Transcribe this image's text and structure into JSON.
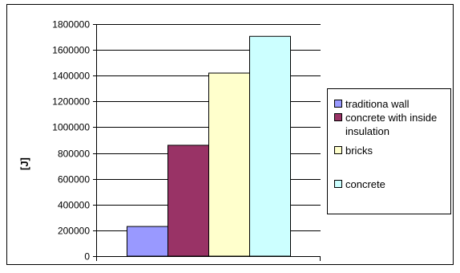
{
  "chart_data": {
    "type": "bar",
    "categories": [
      ""
    ],
    "series": [
      {
        "name": "traditiona wall",
        "values": [
          230000
        ],
        "color": "#9999ff"
      },
      {
        "name": "concrete with inside insulation",
        "values": [
          860000
        ],
        "color": "#993366"
      },
      {
        "name": "bricks",
        "values": [
          1420000
        ],
        "color": "#ffffcc"
      },
      {
        "name": "concrete",
        "values": [
          1705000
        ],
        "color": "#ccffff"
      }
    ],
    "yticks": [
      "0",
      "200000",
      "400000",
      "600000",
      "800000",
      "1000000",
      "1200000",
      "1400000",
      "1600000",
      "1800000"
    ],
    "ylim": [
      0,
      1800000
    ],
    "ylabel": "[J]",
    "xlabel": "",
    "title": "",
    "grid": true,
    "legend": "right"
  }
}
